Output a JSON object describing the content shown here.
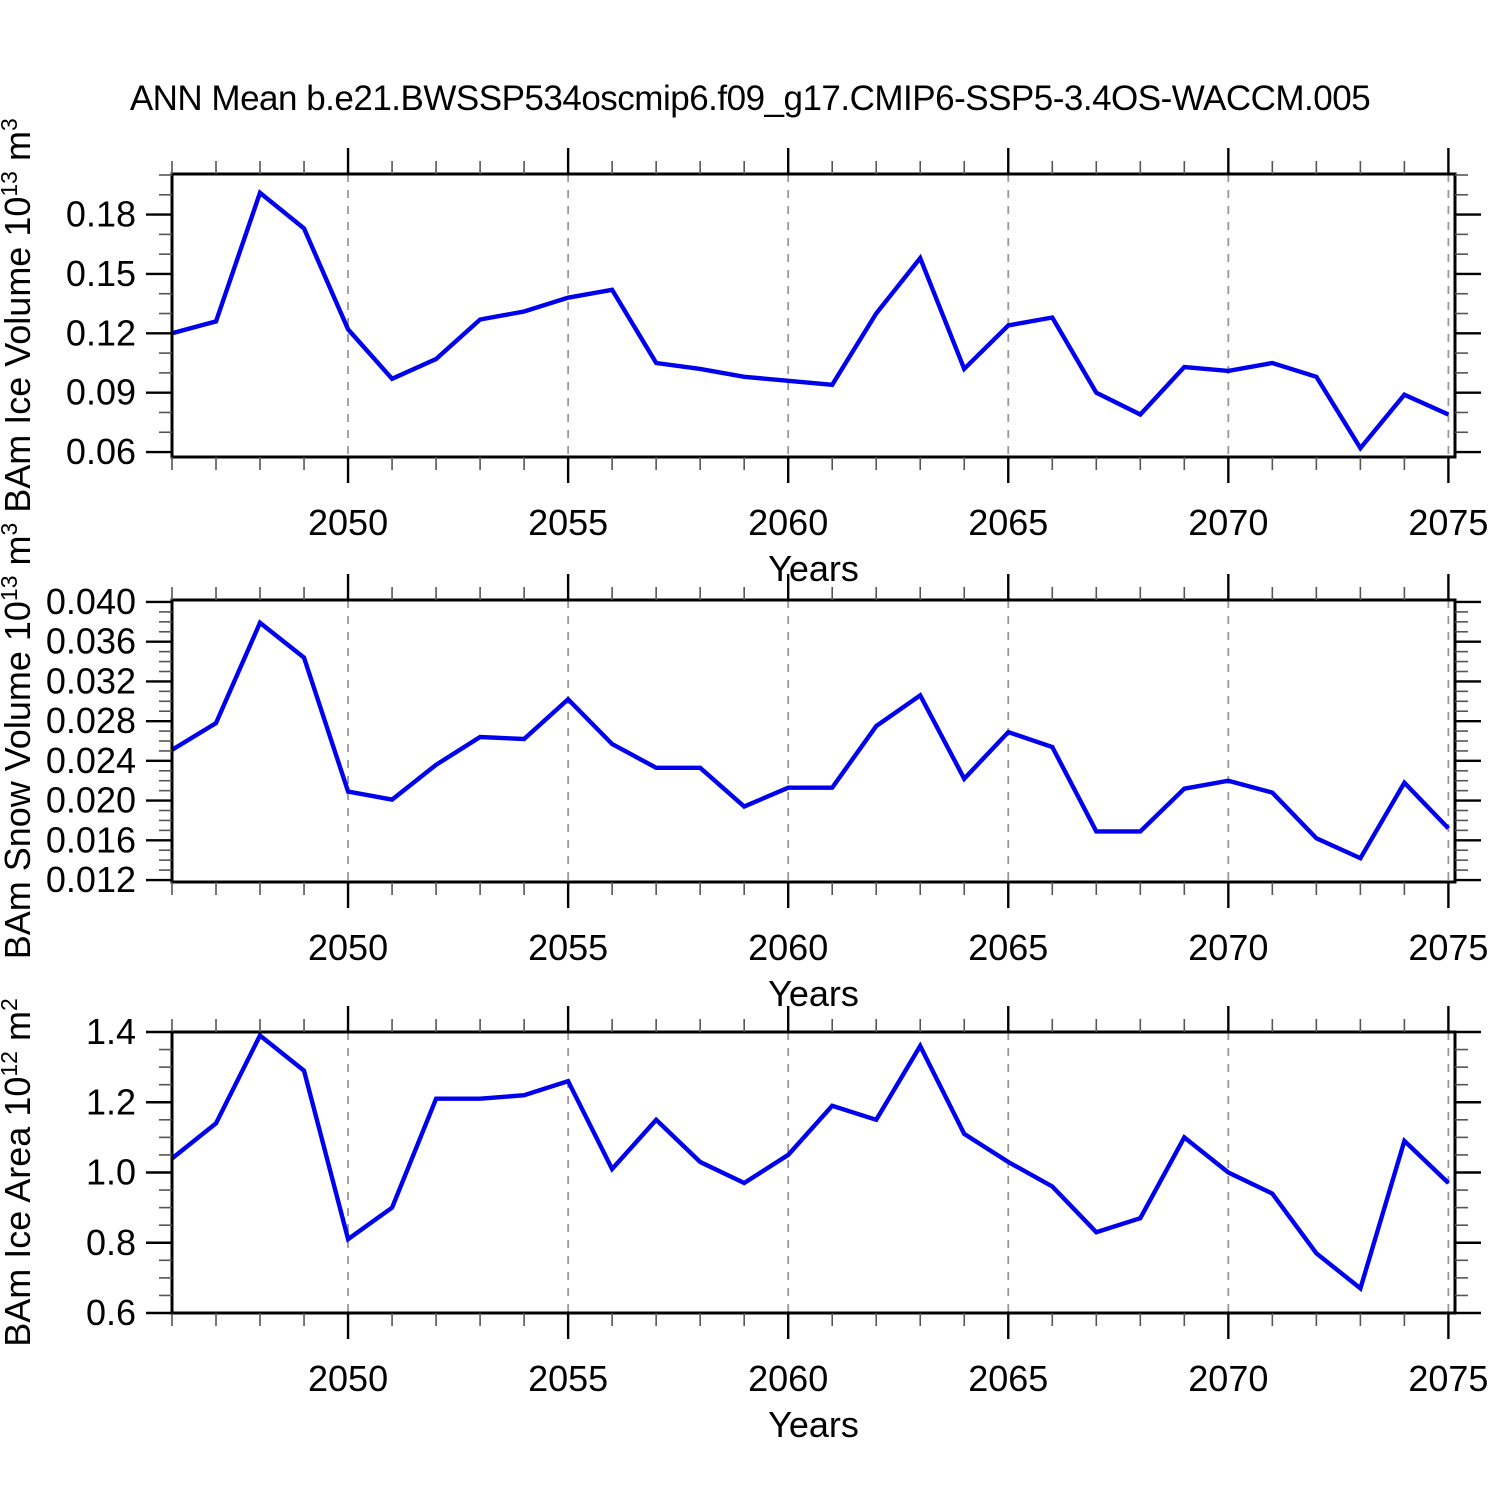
{
  "title": "ANN Mean b.e21.BWSSP534oscmip6.f09_g17.CMIP6-SSP5-3.4OS-WACCM.005",
  "xlabel": "Years",
  "colors": {
    "background": "#ffffff",
    "line": "#0000ee",
    "grid": "#999999",
    "axis": "#000000",
    "tick_major": "#000000",
    "tick_minor": "#555555",
    "text": "#000000"
  },
  "years": [
    2046,
    2047,
    2048,
    2049,
    2050,
    2051,
    2052,
    2053,
    2054,
    2055,
    2056,
    2057,
    2058,
    2059,
    2060,
    2061,
    2062,
    2063,
    2064,
    2065,
    2066,
    2067,
    2068,
    2069,
    2070,
    2071,
    2072,
    2073,
    2074,
    2075
  ],
  "xticks": {
    "major_values": [
      2050,
      2055,
      2060,
      2065,
      2070,
      2075
    ],
    "major_labels": [
      "2050",
      "2055",
      "2060",
      "2065",
      "2070",
      "2075"
    ]
  },
  "chart_data": [
    {
      "type": "line",
      "id": "ice-volume",
      "ylabel": "BAm Ice Volume 10^13 m^3",
      "ylabel_parts": [
        "BAm Ice Volume 10",
        "13",
        " m",
        "3"
      ],
      "xlabel": "Years",
      "ylim": [
        0.0575,
        0.2005
      ],
      "ymajors": [
        0.06,
        0.09,
        0.12,
        0.15,
        0.18
      ],
      "ymajor_labels": [
        "0.06",
        "0.09",
        "0.12",
        "0.15",
        "0.18"
      ],
      "yminor_step": 0.01,
      "grid": true,
      "legend": "none",
      "values": [
        0.12,
        0.126,
        0.191,
        0.173,
        0.122,
        0.097,
        0.107,
        0.127,
        0.131,
        0.138,
        0.142,
        0.105,
        0.102,
        0.098,
        0.096,
        0.094,
        0.13,
        0.158,
        0.102,
        0.124,
        0.128,
        0.09,
        0.079,
        0.103,
        0.101,
        0.105,
        0.098,
        0.062,
        0.089,
        0.079
      ]
    },
    {
      "type": "line",
      "id": "snow-volume",
      "ylabel": "BAm Snow Volume 10^13 m^3",
      "ylabel_parts": [
        "BAm Snow Volume 10",
        "13",
        " m",
        "3"
      ],
      "xlabel": "Years",
      "ylim": [
        0.0118,
        0.0402
      ],
      "ymajors": [
        0.012,
        0.016,
        0.02,
        0.024,
        0.028,
        0.032,
        0.036,
        0.04
      ],
      "ymajor_labels": [
        "0.012",
        "0.016",
        "0.020",
        "0.024",
        "0.028",
        "0.032",
        "0.036",
        "0.040"
      ],
      "yminor_step": 0.001,
      "grid": true,
      "legend": "none",
      "values": [
        0.0251,
        0.0278,
        0.0379,
        0.0344,
        0.0209,
        0.0201,
        0.0236,
        0.0264,
        0.0262,
        0.0302,
        0.0257,
        0.0233,
        0.0233,
        0.0194,
        0.0213,
        0.0213,
        0.0275,
        0.0306,
        0.0222,
        0.0269,
        0.0254,
        0.0169,
        0.0169,
        0.0212,
        0.022,
        0.0208,
        0.0162,
        0.0142,
        0.0218,
        0.0172
      ]
    },
    {
      "type": "line",
      "id": "ice-area",
      "ylabel": "BAm Ice Area 10^12 m^2",
      "ylabel_parts": [
        "BAm Ice Area 10",
        "12",
        " m",
        "2"
      ],
      "xlabel": "Years",
      "ylim": [
        0.6,
        1.4
      ],
      "ymajors": [
        0.6,
        0.8,
        1.0,
        1.2,
        1.4
      ],
      "ymajor_labels": [
        "0.6",
        "0.8",
        "1.0",
        "1.2",
        "1.4"
      ],
      "yminor_step": 0.05,
      "grid": true,
      "legend": "none",
      "values": [
        1.04,
        1.14,
        1.39,
        1.29,
        0.81,
        0.9,
        1.21,
        1.21,
        1.22,
        1.26,
        1.01,
        1.15,
        1.03,
        0.97,
        1.05,
        1.19,
        1.15,
        1.36,
        1.11,
        1.03,
        0.96,
        0.83,
        0.87,
        1.1,
        1.0,
        0.94,
        0.77,
        0.67,
        1.09,
        0.97
      ]
    }
  ]
}
